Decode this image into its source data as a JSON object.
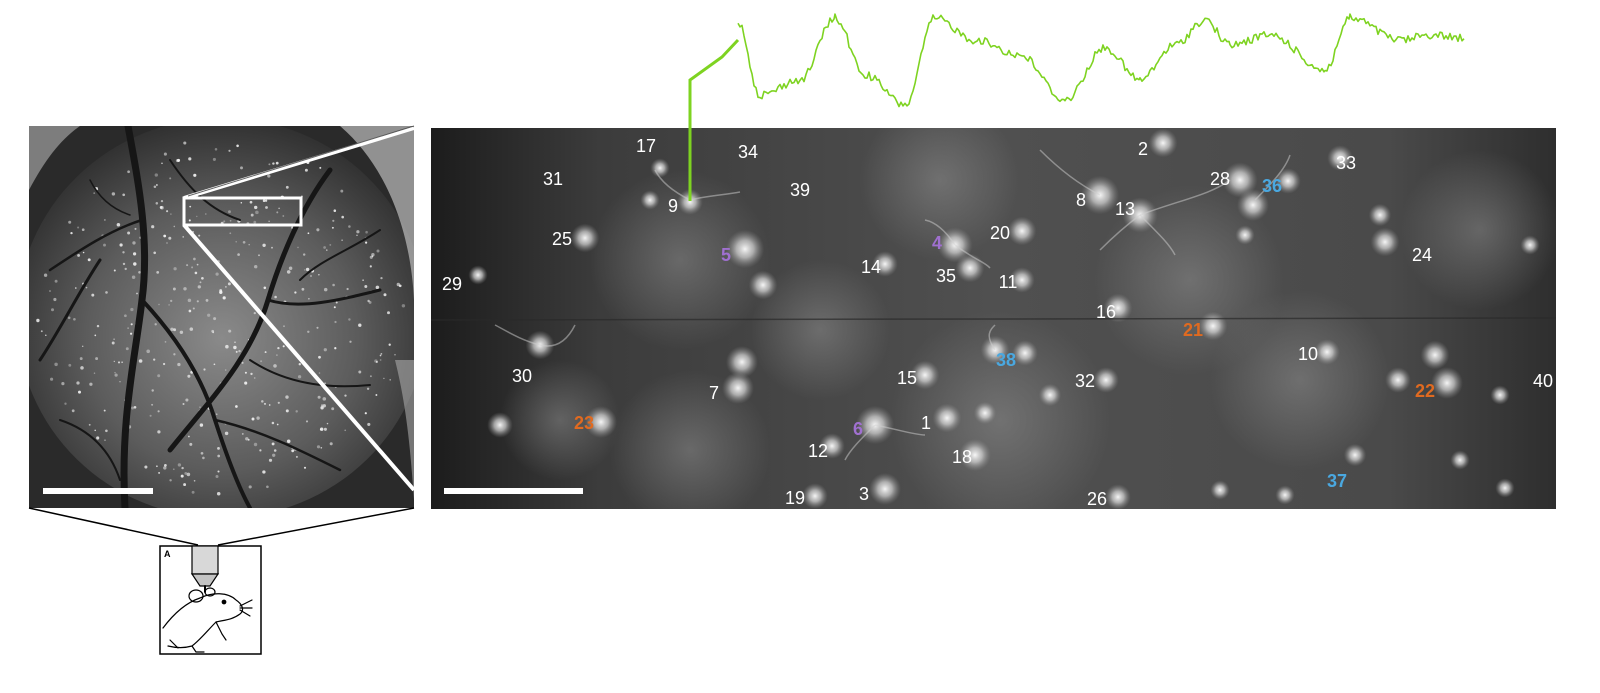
{
  "figure": {
    "inset_panel_letter": "A",
    "trace_color": "#7ed321",
    "highlighted_cell": "9",
    "colors": {
      "default_label": "#ffffff",
      "purple": "#a070d0",
      "blue": "#4aa8e0",
      "orange": "#e06a20"
    }
  },
  "cell_labels": [
    {
      "text": "17",
      "group": "default"
    },
    {
      "text": "34",
      "group": "default"
    },
    {
      "text": "2",
      "group": "default"
    },
    {
      "text": "33",
      "group": "default"
    },
    {
      "text": "31",
      "group": "default"
    },
    {
      "text": "39",
      "group": "default"
    },
    {
      "text": "28",
      "group": "default"
    },
    {
      "text": "36",
      "group": "blue"
    },
    {
      "text": "9",
      "group": "default"
    },
    {
      "text": "8",
      "group": "default"
    },
    {
      "text": "13",
      "group": "default"
    },
    {
      "text": "25",
      "group": "default"
    },
    {
      "text": "5",
      "group": "purple"
    },
    {
      "text": "4",
      "group": "purple"
    },
    {
      "text": "20",
      "group": "default"
    },
    {
      "text": "24",
      "group": "default"
    },
    {
      "text": "14",
      "group": "default"
    },
    {
      "text": "35",
      "group": "default"
    },
    {
      "text": "11",
      "group": "default"
    },
    {
      "text": "29",
      "group": "default"
    },
    {
      "text": "16",
      "group": "default"
    },
    {
      "text": "21",
      "group": "orange"
    },
    {
      "text": "10",
      "group": "default"
    },
    {
      "text": "38",
      "group": "blue"
    },
    {
      "text": "30",
      "group": "default"
    },
    {
      "text": "15",
      "group": "default"
    },
    {
      "text": "32",
      "group": "default"
    },
    {
      "text": "22",
      "group": "orange"
    },
    {
      "text": "40",
      "group": "default"
    },
    {
      "text": "7",
      "group": "default"
    },
    {
      "text": "23",
      "group": "orange"
    },
    {
      "text": "6",
      "group": "purple"
    },
    {
      "text": "1",
      "group": "default"
    },
    {
      "text": "12",
      "group": "default"
    },
    {
      "text": "18",
      "group": "default"
    },
    {
      "text": "37",
      "group": "blue"
    },
    {
      "text": "19",
      "group": "default"
    },
    {
      "text": "3",
      "group": "default"
    },
    {
      "text": "26",
      "group": "default"
    }
  ]
}
